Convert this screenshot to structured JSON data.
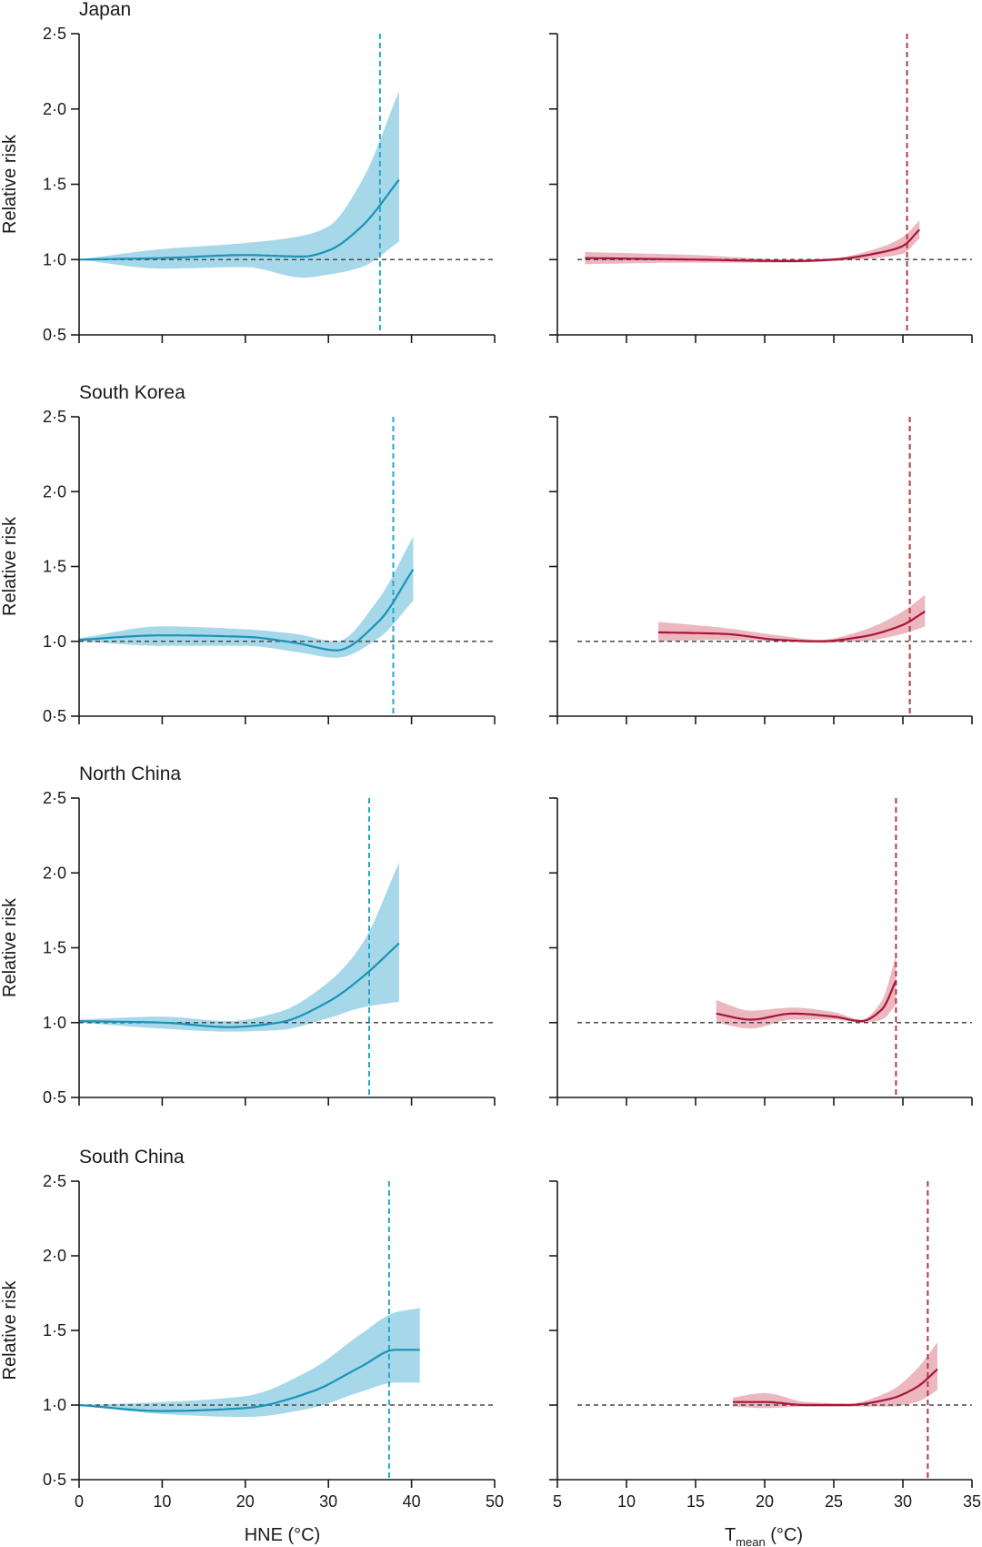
{
  "colors": {
    "hne_line": "#1b93b6",
    "hne_band": "#a6d8ea",
    "hne_threshold": "#23a9c9",
    "tmean_line": "#a8153a",
    "tmean_band": "#e9aab3",
    "tmean_threshold": "#b03a4c",
    "reference": "#4a4a4a",
    "axis": "#1a1a1a"
  },
  "chart_data": [
    {
      "type": "line",
      "region": "Japan",
      "title": "Japan",
      "variable": "HNE",
      "xlim": [
        0,
        50
      ],
      "ylim": [
        0.5,
        2.5
      ],
      "ylabel": "Relative risk",
      "reference_y": 1.0,
      "threshold_x": 36.2,
      "x": [
        0,
        10,
        20,
        27,
        30,
        34,
        38.5
      ],
      "y": [
        1.0,
        1.01,
        1.03,
        1.02,
        1.06,
        1.22,
        1.53
      ],
      "lower": [
        1.0,
        0.94,
        0.95,
        0.88,
        0.9,
        0.95,
        1.12
      ],
      "upper": [
        1.0,
        1.07,
        1.11,
        1.16,
        1.22,
        1.52,
        2.12
      ]
    },
    {
      "type": "line",
      "region": "Japan",
      "variable": "Tmean",
      "xlim": [
        5,
        35
      ],
      "ylim": [
        0.5,
        2.5
      ],
      "reference_y": 1.0,
      "threshold_x": 30.3,
      "x": [
        7,
        15,
        22,
        25,
        28,
        30,
        31.2
      ],
      "y": [
        1.01,
        1.0,
        0.99,
        1.0,
        1.04,
        1.09,
        1.2
      ],
      "lower": [
        0.97,
        0.98,
        0.98,
        0.99,
        1.01,
        1.04,
        1.14
      ],
      "upper": [
        1.05,
        1.03,
        1.0,
        1.01,
        1.07,
        1.15,
        1.26
      ]
    },
    {
      "type": "line",
      "region": "South Korea",
      "title": "South Korea",
      "variable": "HNE",
      "xlim": [
        0,
        50
      ],
      "ylim": [
        0.5,
        2.5
      ],
      "ylabel": "Relative risk",
      "reference_y": 1.0,
      "threshold_x": 37.8,
      "x": [
        0,
        10,
        20,
        26,
        31,
        36,
        40.2
      ],
      "y": [
        1.01,
        1.04,
        1.03,
        0.99,
        0.94,
        1.13,
        1.48
      ],
      "lower": [
        1.0,
        0.97,
        0.97,
        0.93,
        0.89,
        1.02,
        1.27
      ],
      "upper": [
        1.02,
        1.1,
        1.08,
        1.05,
        1.0,
        1.28,
        1.7
      ]
    },
    {
      "type": "line",
      "region": "South Korea",
      "variable": "Tmean",
      "xlim": [
        5,
        35
      ],
      "ylim": [
        0.5,
        2.5
      ],
      "reference_y": 1.0,
      "threshold_x": 30.5,
      "x": [
        12.3,
        17,
        21,
        24,
        27,
        30,
        31.6
      ],
      "y": [
        1.06,
        1.05,
        1.01,
        1.0,
        1.03,
        1.11,
        1.2
      ],
      "lower": [
        1.0,
        1.01,
        1.0,
        0.99,
        1.0,
        1.05,
        1.1
      ],
      "upper": [
        1.13,
        1.09,
        1.04,
        1.01,
        1.07,
        1.2,
        1.31
      ]
    },
    {
      "type": "line",
      "region": "North China",
      "title": "North China",
      "variable": "HNE",
      "xlim": [
        0,
        50
      ],
      "ylim": [
        0.5,
        2.5
      ],
      "ylabel": "Relative risk",
      "reference_y": 1.0,
      "threshold_x": 34.9,
      "x": [
        0,
        10,
        18,
        24,
        30,
        34,
        38.5
      ],
      "y": [
        1.01,
        1.0,
        0.97,
        1.0,
        1.14,
        1.3,
        1.53
      ],
      "lower": [
        1.0,
        0.96,
        0.94,
        0.95,
        1.03,
        1.1,
        1.14
      ],
      "upper": [
        1.02,
        1.04,
        1.01,
        1.07,
        1.27,
        1.52,
        2.07
      ]
    },
    {
      "type": "line",
      "region": "North China",
      "variable": "Tmean",
      "xlim": [
        5,
        35
      ],
      "ylim": [
        0.5,
        2.5
      ],
      "reference_y": 1.0,
      "threshold_x": 29.5,
      "x": [
        16.5,
        19,
        22,
        25,
        27,
        28.5,
        29.5
      ],
      "y": [
        1.06,
        1.02,
        1.06,
        1.04,
        1.01,
        1.09,
        1.28
      ],
      "lower": [
        1.0,
        0.96,
        1.02,
        1.02,
        1.0,
        1.02,
        1.12
      ],
      "upper": [
        1.15,
        1.08,
        1.1,
        1.07,
        1.02,
        1.15,
        1.45
      ]
    },
    {
      "type": "line",
      "region": "South China",
      "title": "South China",
      "variable": "HNE",
      "xlim": [
        0,
        50
      ],
      "ylim": [
        0.5,
        2.5
      ],
      "ylabel": "Relative risk",
      "reference_y": 1.0,
      "threshold_x": 37.3,
      "x": [
        0,
        10,
        20,
        28,
        34,
        38,
        41
      ],
      "y": [
        1.0,
        0.96,
        0.98,
        1.09,
        1.26,
        1.37,
        1.37
      ],
      "lower": [
        1.0,
        0.94,
        0.92,
        0.98,
        1.09,
        1.15,
        1.15
      ],
      "upper": [
        1.0,
        1.02,
        1.06,
        1.24,
        1.48,
        1.62,
        1.65
      ]
    },
    {
      "type": "line",
      "region": "South China",
      "variable": "Tmean",
      "xlim": [
        5,
        35
      ],
      "ylim": [
        0.5,
        2.5
      ],
      "reference_y": 1.0,
      "threshold_x": 31.8,
      "x": [
        17.7,
        20,
        23,
        26,
        29,
        31,
        32.5
      ],
      "y": [
        1.02,
        1.02,
        1.0,
        1.0,
        1.04,
        1.12,
        1.24
      ],
      "lower": [
        0.99,
        0.98,
        0.99,
        0.99,
        0.99,
        1.02,
        1.1
      ],
      "upper": [
        1.05,
        1.08,
        1.02,
        1.01,
        1.09,
        1.24,
        1.42
      ]
    }
  ],
  "axes": {
    "y_ticks": [
      "0·5",
      "1·0",
      "1·5",
      "2·0",
      "2·5"
    ],
    "hne_ticks": [
      "0",
      "10",
      "20",
      "30",
      "40",
      "50"
    ],
    "tmean_ticks": [
      "5",
      "10",
      "15",
      "20",
      "25",
      "30",
      "35"
    ],
    "ylabel": "Relative risk",
    "hne_xlabel": "HNE (°C)",
    "tmean_xlabel_main": "T",
    "tmean_xlabel_sub": "mean",
    "tmean_xlabel_unit": " (°C)"
  }
}
